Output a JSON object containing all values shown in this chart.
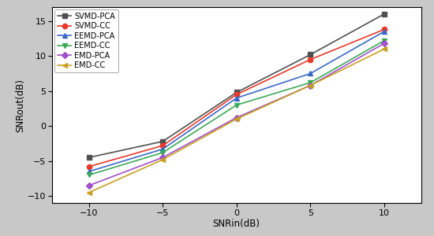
{
  "x": [
    -10,
    -5,
    0,
    5,
    10
  ],
  "series": [
    {
      "label": "SVMD-PCA",
      "color": "#505050",
      "marker": "s",
      "y": [
        -4.5,
        -2.2,
        4.8,
        10.2,
        16.0
      ]
    },
    {
      "label": "SVMD-CC",
      "color": "#e8392a",
      "marker": "o",
      "y": [
        -5.8,
        -2.8,
        4.5,
        9.5,
        13.8
      ]
    },
    {
      "label": "EEMD-PCA",
      "color": "#3a69c7",
      "marker": "^",
      "y": [
        -6.5,
        -3.3,
        4.0,
        7.5,
        13.5
      ]
    },
    {
      "label": "EEMD-CC",
      "color": "#3aaa55",
      "marker": "v",
      "y": [
        -7.0,
        -3.8,
        3.0,
        6.2,
        12.2
      ]
    },
    {
      "label": "EMD-PCA",
      "color": "#a050c8",
      "marker": "D",
      "y": [
        -8.5,
        -4.5,
        1.2,
        5.8,
        11.8
      ]
    },
    {
      "label": "EMD-CC",
      "color": "#c8a020",
      "marker": "<",
      "y": [
        -9.5,
        -4.8,
        1.0,
        5.8,
        11.0
      ]
    }
  ],
  "xlabel_text": "SNRin(dB)",
  "ylabel_text": "SNRout(dB)",
  "xlim": [
    -12.5,
    12.5
  ],
  "ylim": [
    -11,
    17
  ],
  "xticks": [
    -10,
    -5,
    0,
    5,
    10
  ],
  "yticks": [
    -10,
    -5,
    0,
    5,
    10,
    15
  ],
  "background_color": "#c8c8c8",
  "plot_background": "#ffffff",
  "legend_loc": "upper left",
  "linewidth": 1.2,
  "markersize": 4.5
}
